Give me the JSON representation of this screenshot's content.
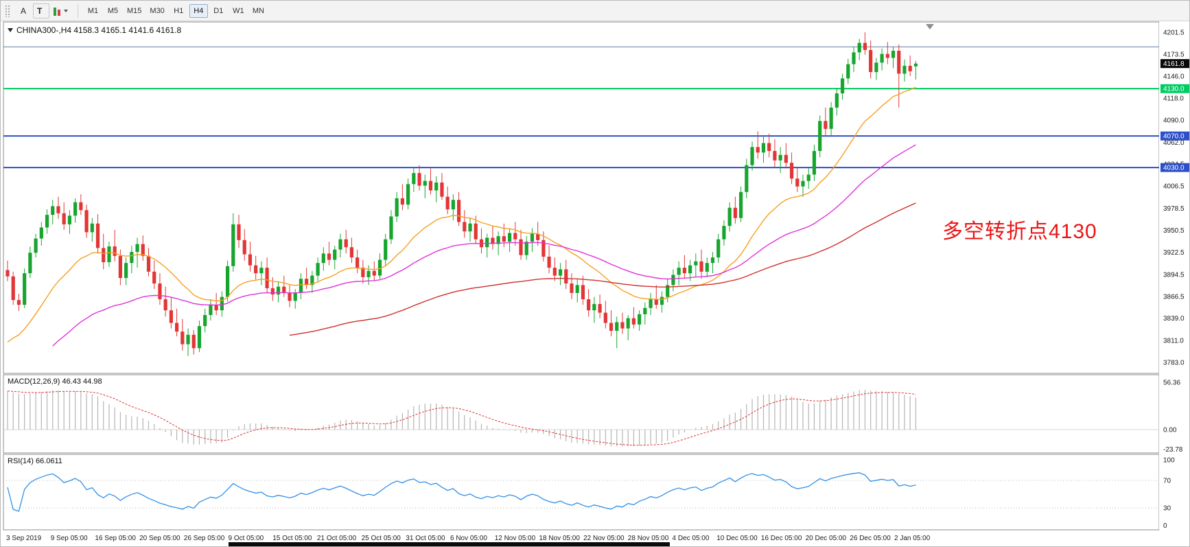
{
  "toolbar": {
    "buttons": [
      {
        "name": "annotation-tool",
        "label": "A"
      },
      {
        "name": "text-tool",
        "label": "T"
      }
    ],
    "timeframes": [
      "M1",
      "M5",
      "M15",
      "M30",
      "H1",
      "H4",
      "D1",
      "W1",
      "MN"
    ],
    "active_timeframe": "H4"
  },
  "chart": {
    "title": "CHINA300-,H4 4158.3 4165.1 4141.6 4161.8",
    "symbol": "CHINA300-",
    "timeframe": "H4",
    "open": "4158.3",
    "high": "4165.1",
    "low": "4141.6",
    "close": "4161.8",
    "current_price": "4161.8",
    "up_color": "#17a52e",
    "down_color": "#e23636",
    "price_axis": [
      "4201.5",
      "4173.5",
      "4146.0",
      "4118.0",
      "4090.0",
      "4062.0",
      "4034.5",
      "4006.5",
      "3978.5",
      "3950.5",
      "3922.5",
      "3894.5",
      "3866.5",
      "3839.0",
      "3811.0",
      "3783.0"
    ],
    "hlines": [
      {
        "price": 4183.0,
        "color": "#5c7ca6",
        "width": 1,
        "label": ""
      },
      {
        "price": 4130.0,
        "color": "#00cc61",
        "width": 2,
        "label": "4130.0"
      },
      {
        "price": 4070.0,
        "color": "#2d50c8",
        "width": 2,
        "label": "4070.0"
      },
      {
        "price": 4030.0,
        "color": "#2d50c8",
        "width": 2,
        "label": "4030.0"
      }
    ],
    "annotation": {
      "text": "多空转折点4130",
      "color": "#ea1414"
    }
  },
  "chart_data": {
    "type": "candlestick",
    "symbol": "CHINA300-",
    "period": "H4",
    "x_labels": [
      "3 Sep 2019",
      "9 Sep 05:00",
      "16 Sep 05:00",
      "20 Sep 05:00",
      "26 Sep 05:00",
      "9 Oct 05:00",
      "15 Oct 05:00",
      "21 Oct 05:00",
      "25 Oct 05:00",
      "31 Oct 05:00",
      "6 Nov 05:00",
      "12 Nov 05:00",
      "18 Nov 05:00",
      "22 Nov 05:00",
      "28 Nov 05:00",
      "4 Dec 05:00",
      "10 Dec 05:00",
      "16 Dec 05:00",
      "20 Dec 05:00",
      "26 Dec 05:00",
      "2 Jan 05:00"
    ],
    "candles": [
      [
        3900,
        3912,
        3886,
        3892
      ],
      [
        3892,
        3898,
        3856,
        3862
      ],
      [
        3862,
        3870,
        3848,
        3856
      ],
      [
        3856,
        3902,
        3852,
        3896
      ],
      [
        3896,
        3930,
        3890,
        3922
      ],
      [
        3922,
        3946,
        3916,
        3940
      ],
      [
        3940,
        3961,
        3931,
        3954
      ],
      [
        3954,
        3977,
        3946,
        3970
      ],
      [
        3970,
        3989,
        3958,
        3981
      ],
      [
        3981,
        3993,
        3965,
        3972
      ],
      [
        3972,
        3986,
        3951,
        3958
      ],
      [
        3958,
        3976,
        3946,
        3969
      ],
      [
        3969,
        3991,
        3960,
        3986
      ],
      [
        3986,
        3996,
        3970,
        3976
      ],
      [
        3976,
        3983,
        3941,
        3948
      ],
      [
        3948,
        3966,
        3936,
        3959
      ],
      [
        3959,
        3971,
        3921,
        3928
      ],
      [
        3928,
        3946,
        3901,
        3910
      ],
      [
        3910,
        3936,
        3904,
        3930
      ],
      [
        3930,
        3951,
        3911,
        3918
      ],
      [
        3918,
        3926,
        3881,
        3890
      ],
      [
        3890,
        3916,
        3881,
        3909
      ],
      [
        3909,
        3931,
        3896,
        3923
      ],
      [
        3923,
        3941,
        3903,
        3933
      ],
      [
        3933,
        3944,
        3912,
        3918
      ],
      [
        3918,
        3928,
        3892,
        3898
      ],
      [
        3898,
        3912,
        3876,
        3883
      ],
      [
        3883,
        3896,
        3856,
        3863
      ],
      [
        3863,
        3879,
        3841,
        3849
      ],
      [
        3849,
        3866,
        3826,
        3833
      ],
      [
        3833,
        3851,
        3816,
        3822
      ],
      [
        3822,
        3838,
        3798,
        3806
      ],
      [
        3806,
        3826,
        3791,
        3818
      ],
      [
        3818,
        3824,
        3793,
        3801
      ],
      [
        3801,
        3836,
        3796,
        3829
      ],
      [
        3829,
        3851,
        3821,
        3843
      ],
      [
        3843,
        3863,
        3836,
        3856
      ],
      [
        3856,
        3871,
        3843,
        3849
      ],
      [
        3849,
        3873,
        3841,
        3866
      ],
      [
        3866,
        3912,
        3860,
        3905
      ],
      [
        3905,
        3972,
        3898,
        3958
      ],
      [
        3958,
        3970,
        3928,
        3938
      ],
      [
        3938,
        3952,
        3912,
        3920
      ],
      [
        3920,
        3936,
        3898,
        3906
      ],
      [
        3906,
        3918,
        3888,
        3896
      ],
      [
        3896,
        3911,
        3881,
        3903
      ],
      [
        3903,
        3916,
        3871,
        3877
      ],
      [
        3877,
        3891,
        3861,
        3869
      ],
      [
        3869,
        3886,
        3859,
        3879
      ],
      [
        3879,
        3893,
        3866,
        3871
      ],
      [
        3871,
        3881,
        3853,
        3861
      ],
      [
        3861,
        3876,
        3851,
        3871
      ],
      [
        3871,
        3896,
        3863,
        3889
      ],
      [
        3889,
        3903,
        3876,
        3881
      ],
      [
        3881,
        3899,
        3871,
        3893
      ],
      [
        3893,
        3916,
        3886,
        3909
      ],
      [
        3909,
        3929,
        3899,
        3921
      ],
      [
        3921,
        3936,
        3906,
        3913
      ],
      [
        3913,
        3931,
        3901,
        3926
      ],
      [
        3926,
        3946,
        3916,
        3939
      ],
      [
        3939,
        3951,
        3921,
        3929
      ],
      [
        3929,
        3941,
        3909,
        3916
      ],
      [
        3916,
        3926,
        3896,
        3903
      ],
      [
        3903,
        3913,
        3883,
        3891
      ],
      [
        3891,
        3906,
        3881,
        3899
      ],
      [
        3899,
        3911,
        3886,
        3893
      ],
      [
        3893,
        3921,
        3889,
        3913
      ],
      [
        3913,
        3946,
        3906,
        3939
      ],
      [
        3939,
        3976,
        3933,
        3968
      ],
      [
        3968,
        3999,
        3961,
        3991
      ],
      [
        3991,
        4009,
        3976,
        3983
      ],
      [
        3983,
        4016,
        3977,
        4009
      ],
      [
        4009,
        4031,
        3999,
        4023
      ],
      [
        4023,
        4033,
        4001,
        4007
      ],
      [
        4007,
        4021,
        3991,
        4013
      ],
      [
        4013,
        4029,
        3996,
        4001
      ],
      [
        4001,
        4019,
        3986,
        4011
      ],
      [
        4011,
        4023,
        3989,
        3993
      ],
      [
        3993,
        4006,
        3971,
        3977
      ],
      [
        3977,
        3996,
        3963,
        3989
      ],
      [
        3989,
        3999,
        3956,
        3961
      ],
      [
        3961,
        3976,
        3941,
        3949
      ],
      [
        3949,
        3966,
        3936,
        3959
      ],
      [
        3959,
        3969,
        3933,
        3939
      ],
      [
        3939,
        3953,
        3921,
        3929
      ],
      [
        3929,
        3946,
        3916,
        3941
      ],
      [
        3941,
        3956,
        3926,
        3933
      ],
      [
        3933,
        3949,
        3919,
        3943
      ],
      [
        3943,
        3959,
        3929,
        3936
      ],
      [
        3936,
        3953,
        3923,
        3947
      ],
      [
        3947,
        3961,
        3931,
        3939
      ],
      [
        3939,
        3951,
        3913,
        3919
      ],
      [
        3919,
        3943,
        3913,
        3936
      ],
      [
        3936,
        3953,
        3923,
        3946
      ],
      [
        3946,
        3961,
        3931,
        3938
      ],
      [
        3938,
        3949,
        3911,
        3917
      ],
      [
        3917,
        3931,
        3896,
        3903
      ],
      [
        3903,
        3916,
        3886,
        3893
      ],
      [
        3893,
        3909,
        3881,
        3901
      ],
      [
        3901,
        3913,
        3876,
        3883
      ],
      [
        3883,
        3896,
        3863,
        3871
      ],
      [
        3871,
        3889,
        3859,
        3881
      ],
      [
        3881,
        3893,
        3856,
        3863
      ],
      [
        3863,
        3876,
        3841,
        3849
      ],
      [
        3849,
        3866,
        3833,
        3857
      ],
      [
        3857,
        3869,
        3839,
        3846
      ],
      [
        3846,
        3861,
        3826,
        3833
      ],
      [
        3833,
        3849,
        3816,
        3823
      ],
      [
        3823,
        3841,
        3801,
        3834
      ],
      [
        3834,
        3846,
        3819,
        3826
      ],
      [
        3826,
        3843,
        3811,
        3839
      ],
      [
        3839,
        3853,
        3826,
        3831
      ],
      [
        3831,
        3849,
        3823,
        3844
      ],
      [
        3844,
        3859,
        3831,
        3852
      ],
      [
        3852,
        3871,
        3843,
        3863
      ],
      [
        3863,
        3881,
        3851,
        3856
      ],
      [
        3856,
        3873,
        3846,
        3866
      ],
      [
        3866,
        3889,
        3859,
        3881
      ],
      [
        3881,
        3901,
        3873,
        3894
      ],
      [
        3894,
        3911,
        3881,
        3903
      ],
      [
        3903,
        3919,
        3889,
        3896
      ],
      [
        3896,
        3913,
        3886,
        3906
      ],
      [
        3906,
        3921,
        3891,
        3911
      ],
      [
        3911,
        3926,
        3889,
        3898
      ],
      [
        3898,
        3916,
        3891,
        3909
      ],
      [
        3909,
        3923,
        3896,
        3916
      ],
      [
        3916,
        3946,
        3909,
        3939
      ],
      [
        3939,
        3963,
        3931,
        3956
      ],
      [
        3956,
        3986,
        3949,
        3979
      ],
      [
        3979,
        3993,
        3959,
        3966
      ],
      [
        3966,
        4006,
        3961,
        3999
      ],
      [
        3999,
        4041,
        3991,
        4033
      ],
      [
        4033,
        4063,
        4026,
        4056
      ],
      [
        4056,
        4076,
        4041,
        4049
      ],
      [
        4049,
        4069,
        4036,
        4061
      ],
      [
        4061,
        4073,
        4043,
        4051
      ],
      [
        4051,
        4066,
        4031,
        4039
      ],
      [
        4039,
        4056,
        4023,
        4046
      ],
      [
        4046,
        4061,
        4029,
        4036
      ],
      [
        4036,
        4049,
        4009,
        4016
      ],
      [
        4016,
        4031,
        3999,
        4006
      ],
      [
        4006,
        4021,
        3993,
        4013
      ],
      [
        4013,
        4029,
        4003,
        4021
      ],
      [
        4021,
        4059,
        4013,
        4051
      ],
      [
        4051,
        4096,
        4043,
        4089
      ],
      [
        4089,
        4106,
        4069,
        4079
      ],
      [
        4079,
        4113,
        4071,
        4106
      ],
      [
        4106,
        4131,
        4096,
        4124
      ],
      [
        4124,
        4149,
        4116,
        4143
      ],
      [
        4143,
        4168,
        4136,
        4161
      ],
      [
        4161,
        4183,
        4151,
        4176
      ],
      [
        4176,
        4193,
        4166,
        4188
      ],
      [
        4188,
        4201.5,
        4173,
        4179
      ],
      [
        4179,
        4191,
        4143,
        4151
      ],
      [
        4151,
        4169,
        4141,
        4163
      ],
      [
        4163,
        4181,
        4153,
        4174
      ],
      [
        4174,
        4189,
        4161,
        4169
      ],
      [
        4169,
        4183,
        4156,
        4178
      ],
      [
        4178,
        4186,
        4106,
        4149
      ],
      [
        4149,
        4167,
        4139,
        4159
      ],
      [
        4159,
        4172,
        4146,
        4152
      ],
      [
        4158.3,
        4165.1,
        4141.6,
        4161.8
      ]
    ],
    "ma_lines": [
      {
        "name": "ma-fast",
        "period": 20,
        "seed": 3800,
        "start": 0,
        "color": "#f5a01e"
      },
      {
        "name": "ma-mid",
        "period": 50,
        "seed": 3752,
        "start": 8,
        "color": "#df30d8"
      },
      {
        "name": "ma-slow",
        "period": 110,
        "seed": 3700,
        "start": 50,
        "color": "#cf2d2d"
      }
    ]
  },
  "indicators": {
    "macd": {
      "label": "MACD(12,26,9) 46.43 44.98",
      "value_main": "46.43",
      "value_signal": "44.98",
      "axis": [
        "56.36",
        "0.00",
        "-23.78"
      ],
      "seed_fast": 3852,
      "seed_slow": 3798,
      "histogram_color": "#b4b4b4",
      "signal_color": "#e03030"
    },
    "rsi": {
      "label": "RSI(14) 66.0611",
      "value": "66.0611",
      "period": 14,
      "axis": [
        "100",
        "70",
        "30",
        "0"
      ],
      "levels": [
        70,
        30
      ],
      "line_color": "#2f8fe8"
    }
  }
}
